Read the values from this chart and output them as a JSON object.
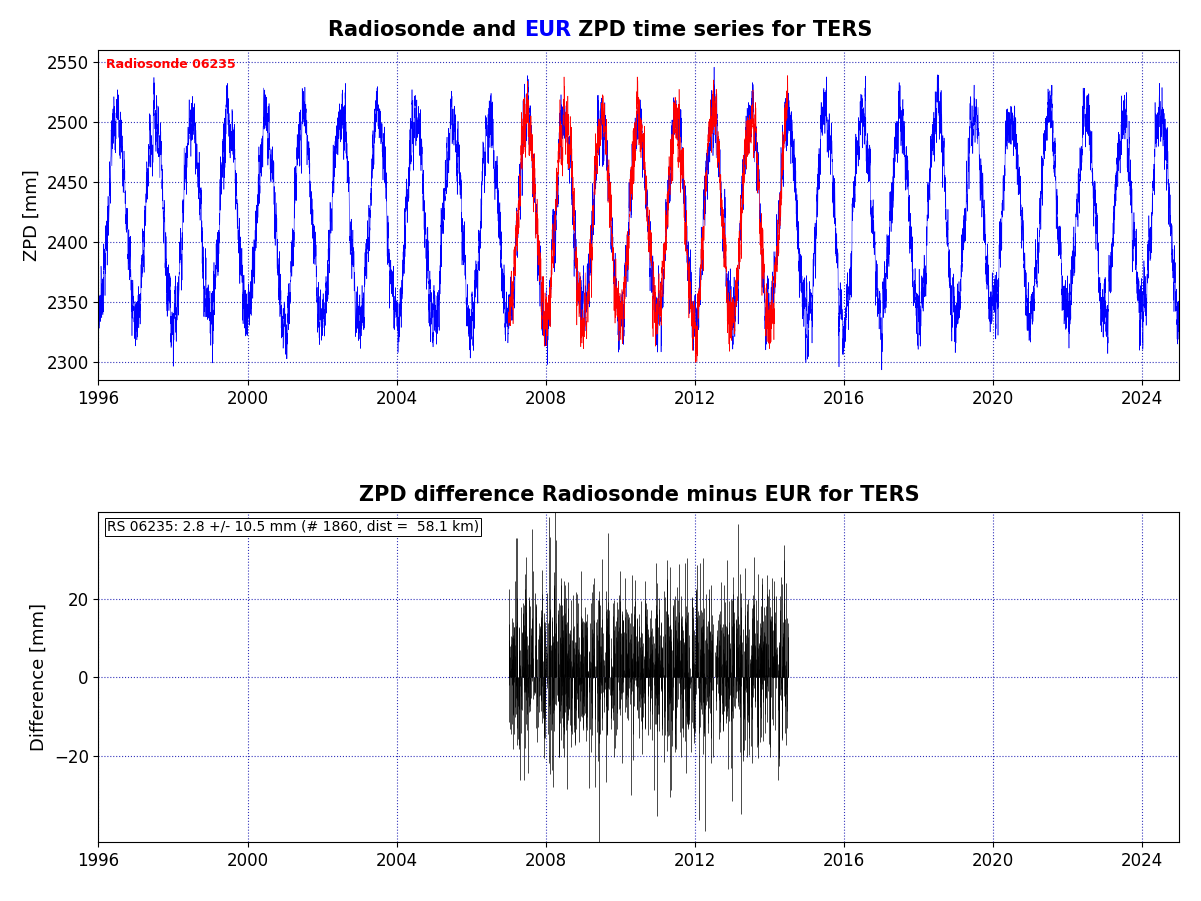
{
  "title1_parts": [
    {
      "text": "Radiosonde and ",
      "color": "black"
    },
    {
      "text": "EUR",
      "color": "blue"
    },
    {
      "text": " ZPD time series for TERS",
      "color": "black"
    }
  ],
  "title2": "ZPD difference Radiosonde minus EUR for TERS",
  "ylabel1": "ZPD [mm]",
  "ylabel2": "Difference [mm]",
  "xlim": [
    1996,
    2025
  ],
  "xticks": [
    1996,
    2000,
    2004,
    2008,
    2012,
    2016,
    2020,
    2024
  ],
  "xticklabels": [
    "1996",
    "2000",
    "2004",
    "2008",
    "2012",
    "2016",
    "2020",
    "2024"
  ],
  "ylim1": [
    2285,
    2560
  ],
  "yticks1": [
    2300,
    2350,
    2400,
    2450,
    2500,
    2550
  ],
  "ylim2": [
    -42,
    42
  ],
  "yticks2": [
    -20,
    0,
    20
  ],
  "legend_text": "Radiosonde 06235",
  "legend_color": "#FF0000",
  "annotation": "RS 06235: 2.8 +/- 10.5 mm (# 1860, dist =  58.1 km)",
  "blue_color": "#0000FF",
  "red_color": "#FF0000",
  "black_color": "#000000",
  "grid_color": "#0000AA",
  "title_fontsize": 15,
  "label_fontsize": 13,
  "tick_fontsize": 12,
  "annotation_fontsize": 10,
  "legend_fontsize": 9,
  "blue_range": [
    1996.0,
    2025.0
  ],
  "red_range": [
    2007.0,
    2014.5
  ],
  "diff_range": [
    2007.0,
    2014.5
  ],
  "zpd_base": 2420,
  "zpd_amp": 85,
  "n_years_blue": 29,
  "samples_per_year": 365
}
